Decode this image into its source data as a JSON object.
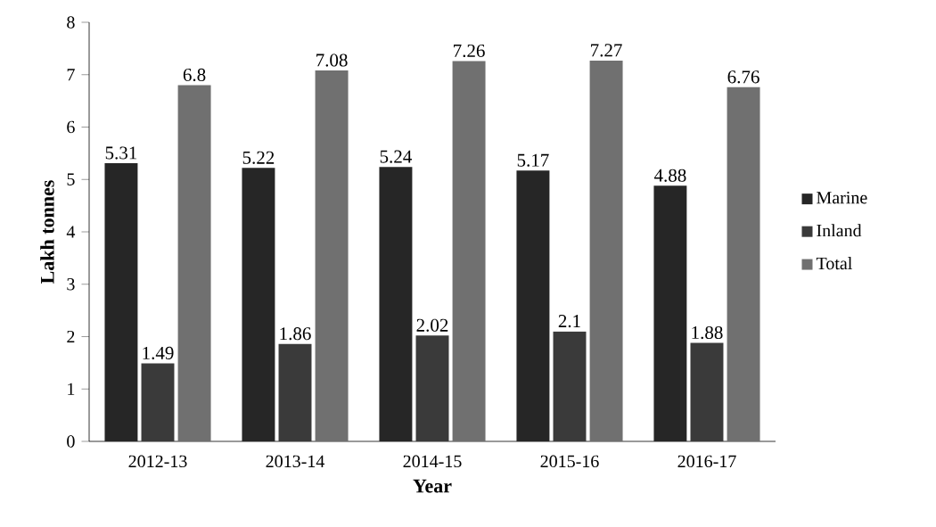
{
  "chart_data": {
    "type": "bar",
    "xlabel": "Year",
    "ylabel": "Lakh tonnes",
    "categories": [
      "2012-13",
      "2013-14",
      "2014-15",
      "2015-16",
      "2016-17"
    ],
    "series": [
      {
        "name": "Marine",
        "color": "#262626",
        "values": [
          5.31,
          5.22,
          5.24,
          5.17,
          4.88
        ]
      },
      {
        "name": "Inland",
        "color": "#3a3a3a",
        "values": [
          1.49,
          1.86,
          2.02,
          2.1,
          1.88
        ]
      },
      {
        "name": "Total",
        "color": "#707070",
        "values": [
          6.8,
          7.08,
          7.26,
          7.27,
          6.76
        ]
      }
    ],
    "ylim": [
      0,
      8
    ],
    "yticks": [
      0,
      1,
      2,
      3,
      4,
      5,
      6,
      7,
      8
    ],
    "data_labels": true,
    "legend": "right"
  }
}
